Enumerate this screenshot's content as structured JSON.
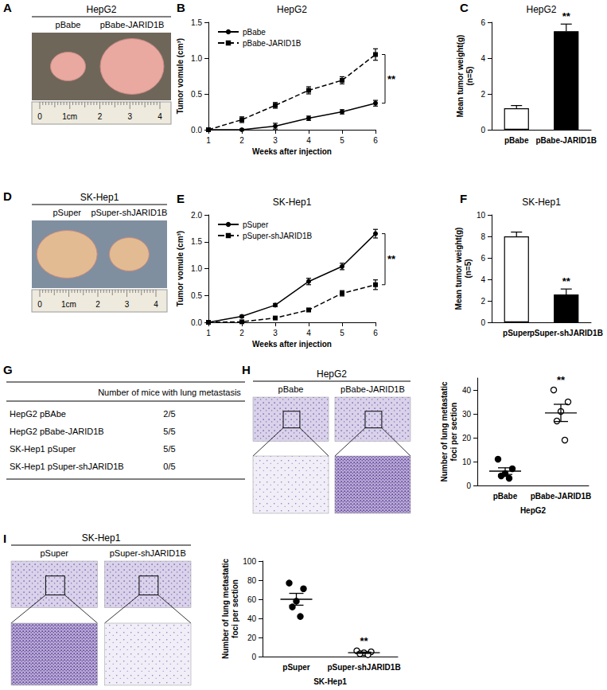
{
  "panels": [
    {
      "panel": "A",
      "type": "photo",
      "title": "HepG2",
      "labels": [
        "pBabe",
        "pBabe-JARID1B"
      ],
      "ruler": [
        "0",
        "1cm",
        "2",
        "3",
        "4"
      ]
    },
    {
      "panel": "D",
      "type": "photo",
      "title": "SK-Hep1",
      "labels": [
        "pSuper",
        "pSuper-shJARID1B"
      ],
      "ruler": [
        "0",
        "1cm",
        "2",
        "3",
        "4"
      ]
    },
    {
      "panel": "G",
      "type": "table",
      "header": "Number of mice with lung metastasis",
      "rows": [
        [
          "HepG2 pBAbe",
          "2/5"
        ],
        [
          "HepG2 pBabe-JARID1B",
          "5/5"
        ],
        [
          "SK-Hep1 pSuper",
          "5/5"
        ],
        [
          "SK-Hep1 pSuper-shJARID1B",
          "0/5"
        ]
      ]
    },
    {
      "panel": "H",
      "type": "histology",
      "title": "HepG2",
      "labels": [
        "pBabe",
        "pBabe-JARID1B"
      ]
    },
    {
      "panel": "I",
      "type": "histology",
      "title": "SK-Hep1",
      "labels": [
        "pSuper",
        "pSuper-shJARID1B"
      ]
    }
  ],
  "chart_data": [
    {
      "panel": "B",
      "type": "line",
      "title": "HepG2",
      "xlabel": "Weeks after injection",
      "ylabel": "Tumor vomule (cm³)",
      "x": [
        1,
        2,
        3,
        4,
        5,
        6
      ],
      "xlim": [
        1,
        6
      ],
      "xticks": [
        1,
        2,
        3,
        4,
        5,
        6
      ],
      "ylim": [
        0,
        1.5
      ],
      "yticks": [
        {
          "value": 0,
          "label": "0.0"
        },
        {
          "value": 0.5,
          "label": "0.5"
        },
        {
          "value": 1,
          "label": "1.0"
        },
        {
          "value": 1.5,
          "label": "1.5"
        }
      ],
      "grid": false,
      "legend": "upper left",
      "annotation": "**",
      "series": [
        {
          "name": "pBabe",
          "color": "#000000",
          "marker": "circle",
          "line_style": "solid",
          "values": [
            0,
            0,
            0.05,
            0.16,
            0.25,
            0.37
          ],
          "errors": [
            0,
            0.01,
            0.04,
            0.03,
            0.03,
            0.04
          ]
        },
        {
          "name": "pBabe-JARID1B",
          "color": "#000000",
          "marker": "square",
          "line_style": "dashed",
          "values": [
            0,
            0.14,
            0.34,
            0.55,
            0.69,
            1.05
          ],
          "errors": [
            0,
            0.04,
            0.04,
            0.05,
            0.05,
            0.08
          ]
        }
      ]
    },
    {
      "panel": "C",
      "type": "bar",
      "title": "HepG2",
      "ylabel": [
        "Mean tumor weight(g)",
        "(n=5)"
      ],
      "categories": [
        "pBabe",
        "pBabe-JARID1B"
      ],
      "values": [
        1.2,
        5.5
      ],
      "errors": [
        0.15,
        0.4
      ],
      "colors": [
        "#ffffff",
        "#000000"
      ],
      "ylim": [
        0,
        6
      ],
      "yticks": [
        0,
        2,
        4,
        6
      ],
      "grid": false,
      "annotation": "**"
    },
    {
      "panel": "E",
      "type": "line",
      "title": "SK-Hep1",
      "xlabel": "Weeks after injection",
      "ylabel": "Tumor vomule (cm³)",
      "x": [
        1,
        2,
        3,
        4,
        5,
        6
      ],
      "xlim": [
        1,
        6
      ],
      "xticks": [
        1,
        2,
        3,
        4,
        5,
        6
      ],
      "ylim": [
        0,
        2
      ],
      "yticks": [
        {
          "value": 0,
          "label": "0.0"
        },
        {
          "value": 0.5,
          "label": "0.5"
        },
        {
          "value": 1,
          "label": "1.0"
        },
        {
          "value": 1.5,
          "label": "1.5"
        },
        {
          "value": 2,
          "label": "2.0"
        }
      ],
      "grid": false,
      "legend": "upper left",
      "annotation": "**",
      "series": [
        {
          "name": "pSuper",
          "color": "#000000",
          "marker": "circle",
          "line_style": "solid",
          "values": [
            0,
            0.11,
            0.32,
            0.76,
            1.04,
            1.65
          ],
          "errors": [
            0,
            0.02,
            0.03,
            0.06,
            0.06,
            0.08
          ]
        },
        {
          "name": "pSuper-shJARID1B",
          "color": "#000000",
          "marker": "square",
          "line_style": "dashed",
          "values": [
            0,
            0.01,
            0.08,
            0.23,
            0.54,
            0.7
          ],
          "errors": [
            0,
            0.01,
            0.02,
            0.03,
            0.05,
            0.09
          ]
        }
      ]
    },
    {
      "panel": "F",
      "type": "bar",
      "title": "SK-Hep1",
      "ylabel": [
        "Mean tumor weight(g)",
        "(n=5)"
      ],
      "categories": [
        "pSuper",
        "pSuper-shJARID1B"
      ],
      "values": [
        8.0,
        2.6
      ],
      "errors": [
        0.4,
        0.5
      ],
      "colors": [
        "#ffffff",
        "#000000"
      ],
      "ylim": [
        0,
        10
      ],
      "yticks": [
        0,
        2,
        4,
        6,
        8,
        10
      ],
      "grid": false,
      "annotation": "**"
    },
    {
      "type": "scatter",
      "xlabel": "HepG2",
      "ylabel": [
        "Number of lung metastatic",
        "foci per section"
      ],
      "categories": [
        "pBabe",
        "pBabe-JARID1B"
      ],
      "color": "#000000",
      "groups": [
        {
          "values": [
            11,
            7,
            5,
            4,
            3
          ],
          "mean": 6,
          "error": 1.4,
          "marker": "circle"
        },
        {
          "values": [
            40,
            35,
            31,
            27,
            19
          ],
          "mean": 30.4,
          "error": 3.6,
          "marker": "ring"
        }
      ],
      "ylim": [
        0,
        45
      ],
      "yticks": [
        0,
        10,
        20,
        30,
        40
      ],
      "grid": false,
      "annotation": "**"
    },
    {
      "type": "scatter",
      "xlabel": "SK-Hep1",
      "ylabel": [
        "Number of lung metastatic",
        "foci per section"
      ],
      "categories": [
        "pSuper",
        "pSuper-shJARID1B"
      ],
      "color": "#000000",
      "groups": [
        {
          "values": [
            77,
            71,
            58,
            52,
            42
          ],
          "mean": 60,
          "error": 6.2,
          "marker": "circle"
        },
        {
          "values": [
            6,
            5,
            4,
            3,
            2
          ],
          "mean": 4,
          "error": 0.7,
          "marker": "ring"
        }
      ],
      "ylim": [
        0,
        100
      ],
      "yticks": [
        0,
        20,
        40,
        60,
        80,
        100
      ],
      "grid": false,
      "annotation": "**"
    }
  ]
}
